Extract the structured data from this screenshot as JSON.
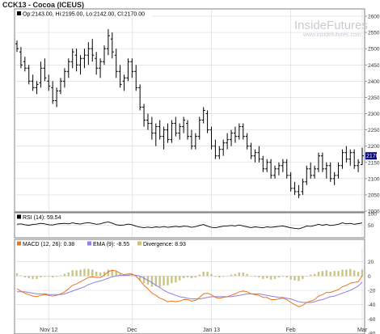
{
  "title": "CCK13 - Cocoa (ICEUS)",
  "ohlc_readout": {
    "open": "Op:2143.00",
    "high": "Hi:2195.00",
    "low": "Lo:2142.00",
    "close": "Cl:2170.00"
  },
  "watermark": {
    "brand": "InsideFutures",
    "url": "www.insidefutures.com"
  },
  "colors": {
    "price_bar": "#000000",
    "rsi": "#000000",
    "macd": "#e8761e",
    "ema": "#8f7fe6",
    "divergence": "#c9c482",
    "last_price_box": "#000080",
    "grid": "#d8d8d8"
  },
  "chart_data": [
    {
      "type": "ohlc",
      "panel": "price",
      "ylim": [
        2000,
        2620
      ],
      "y_ticks": [
        2000,
        2050,
        2100,
        2150,
        2200,
        2250,
        2300,
        2350,
        2400,
        2450,
        2500,
        2550,
        2600
      ],
      "last_price_label": "2170",
      "bars": [
        [
          2515,
          2525,
          2490,
          2500
        ],
        [
          2490,
          2505,
          2440,
          2450
        ],
        [
          2460,
          2475,
          2430,
          2440
        ],
        [
          2440,
          2450,
          2390,
          2400
        ],
        [
          2400,
          2420,
          2370,
          2380
        ],
        [
          2380,
          2400,
          2360,
          2390
        ],
        [
          2395,
          2460,
          2380,
          2440
        ],
        [
          2440,
          2470,
          2400,
          2410
        ],
        [
          2400,
          2420,
          2370,
          2385
        ],
        [
          2380,
          2400,
          2330,
          2340
        ],
        [
          2340,
          2380,
          2320,
          2370
        ],
        [
          2370,
          2410,
          2360,
          2400
        ],
        [
          2400,
          2440,
          2380,
          2430
        ],
        [
          2430,
          2470,
          2410,
          2460
        ],
        [
          2460,
          2500,
          2440,
          2490
        ],
        [
          2480,
          2500,
          2430,
          2450
        ],
        [
          2450,
          2480,
          2420,
          2470
        ],
        [
          2470,
          2500,
          2440,
          2480
        ],
        [
          2480,
          2520,
          2450,
          2500
        ],
        [
          2500,
          2530,
          2460,
          2480
        ],
        [
          2470,
          2490,
          2420,
          2440
        ],
        [
          2440,
          2470,
          2410,
          2460
        ],
        [
          2460,
          2510,
          2450,
          2500
        ],
        [
          2500,
          2560,
          2480,
          2540
        ],
        [
          2530,
          2550,
          2470,
          2490
        ],
        [
          2480,
          2500,
          2410,
          2430
        ],
        [
          2430,
          2450,
          2380,
          2390
        ],
        [
          2400,
          2420,
          2370,
          2410
        ],
        [
          2410,
          2470,
          2400,
          2460
        ],
        [
          2460,
          2470,
          2410,
          2430
        ],
        [
          2430,
          2450,
          2370,
          2380
        ],
        [
          2380,
          2390,
          2310,
          2320
        ],
        [
          2320,
          2330,
          2260,
          2280
        ],
        [
          2280,
          2300,
          2250,
          2270
        ],
        [
          2270,
          2290,
          2220,
          2240
        ],
        [
          2240,
          2270,
          2200,
          2260
        ],
        [
          2260,
          2280,
          2220,
          2230
        ],
        [
          2230,
          2260,
          2190,
          2250
        ],
        [
          2250,
          2270,
          2210,
          2220
        ],
        [
          2220,
          2280,
          2210,
          2270
        ],
        [
          2270,
          2290,
          2230,
          2240
        ],
        [
          2240,
          2270,
          2220,
          2260
        ],
        [
          2260,
          2290,
          2240,
          2280
        ],
        [
          2270,
          2280,
          2220,
          2230
        ],
        [
          2230,
          2250,
          2190,
          2200
        ],
        [
          2200,
          2240,
          2190,
          2230
        ],
        [
          2230,
          2290,
          2220,
          2280
        ],
        [
          2280,
          2320,
          2270,
          2310
        ],
        [
          2300,
          2310,
          2240,
          2250
        ],
        [
          2250,
          2260,
          2190,
          2200
        ],
        [
          2200,
          2220,
          2160,
          2170
        ],
        [
          2170,
          2200,
          2160,
          2190
        ],
        [
          2190,
          2220,
          2170,
          2210
        ],
        [
          2210,
          2240,
          2190,
          2220
        ],
        [
          2220,
          2250,
          2200,
          2240
        ],
        [
          2240,
          2260,
          2210,
          2230
        ],
        [
          2230,
          2270,
          2220,
          2260
        ],
        [
          2260,
          2270,
          2220,
          2230
        ],
        [
          2230,
          2240,
          2190,
          2200
        ],
        [
          2200,
          2210,
          2160,
          2170
        ],
        [
          2170,
          2190,
          2150,
          2180
        ],
        [
          2180,
          2200,
          2150,
          2160
        ],
        [
          2160,
          2170,
          2120,
          2130
        ],
        [
          2130,
          2160,
          2120,
          2150
        ],
        [
          2150,
          2160,
          2100,
          2110
        ],
        [
          2110,
          2140,
          2100,
          2130
        ],
        [
          2130,
          2150,
          2110,
          2140
        ],
        [
          2140,
          2160,
          2120,
          2150
        ],
        [
          2150,
          2160,
          2100,
          2110
        ],
        [
          2110,
          2120,
          2060,
          2070
        ],
        [
          2070,
          2090,
          2050,
          2060
        ],
        [
          2060,
          2080,
          2040,
          2050
        ],
        [
          2060,
          2100,
          2050,
          2090
        ],
        [
          2090,
          2140,
          2080,
          2130
        ],
        [
          2130,
          2150,
          2100,
          2110
        ],
        [
          2110,
          2140,
          2100,
          2130
        ],
        [
          2130,
          2180,
          2120,
          2170
        ],
        [
          2170,
          2180,
          2120,
          2130
        ],
        [
          2130,
          2150,
          2100,
          2140
        ],
        [
          2140,
          2150,
          2090,
          2100
        ],
        [
          2100,
          2120,
          2080,
          2110
        ],
        [
          2110,
          2150,
          2100,
          2140
        ],
        [
          2140,
          2190,
          2130,
          2180
        ],
        [
          2180,
          2200,
          2150,
          2160
        ],
        [
          2160,
          2190,
          2140,
          2180
        ],
        [
          2180,
          2190,
          2130,
          2140
        ],
        [
          2140,
          2160,
          2120,
          2150
        ],
        [
          2143,
          2195,
          2142,
          2170
        ]
      ]
    },
    {
      "type": "line",
      "panel": "rsi",
      "label": "RSI (14): 59.54",
      "ylim": [
        0,
        100
      ],
      "y_ticks": [
        50,
        100
      ],
      "values": [
        54,
        56,
        52,
        50,
        53,
        55,
        58,
        56,
        52,
        51,
        55,
        57,
        58,
        56,
        60,
        57,
        55,
        59,
        61,
        58,
        54,
        56,
        61,
        64,
        59,
        52,
        50,
        51,
        55,
        52,
        46,
        42,
        40,
        42,
        40,
        43,
        41,
        44,
        41,
        43,
        45,
        43,
        46,
        45,
        41,
        44,
        49,
        53,
        46,
        41,
        39,
        43,
        46,
        47,
        49,
        47,
        51,
        47,
        43,
        40,
        43,
        41,
        39,
        43,
        41,
        43,
        45,
        47,
        43,
        39,
        37,
        35,
        40,
        47,
        45,
        49,
        54,
        50,
        53,
        49,
        51,
        54,
        60,
        56,
        58,
        54,
        57,
        59.54
      ]
    },
    {
      "type": "macd",
      "panel": "macd",
      "legend": {
        "macd": "MACD (12, 26): 0.38",
        "ema": "EMA (9): -8.55",
        "divergence": "Divergence: 8.93"
      },
      "ylim": [
        -80,
        40
      ],
      "y_ticks": [
        -80,
        -60,
        -40,
        -20,
        0,
        20
      ],
      "macd": [
        -18,
        -21,
        -24,
        -26,
        -28,
        -29,
        -27,
        -26,
        -27,
        -28,
        -27,
        -25,
        -22,
        -18,
        -13,
        -11,
        -8,
        -5,
        -2,
        -1,
        -2,
        -2,
        1,
        6,
        8,
        7,
        4,
        2,
        3,
        3,
        0,
        -6,
        -13,
        -18,
        -24,
        -27,
        -31,
        -33,
        -36,
        -35,
        -36,
        -35,
        -33,
        -33,
        -35,
        -34,
        -30,
        -25,
        -24,
        -26,
        -30,
        -31,
        -30,
        -29,
        -27,
        -25,
        -22,
        -21,
        -22,
        -25,
        -26,
        -27,
        -30,
        -30,
        -33,
        -33,
        -32,
        -31,
        -33,
        -37,
        -40,
        -43,
        -41,
        -37,
        -35,
        -33,
        -28,
        -26,
        -23,
        -23,
        -21,
        -19,
        -15,
        -13,
        -10,
        -9,
        -8,
        0.38
      ],
      "ema": [
        -22,
        -22,
        -22,
        -23,
        -24,
        -25,
        -25,
        -25,
        -26,
        -26,
        -26,
        -26,
        -25,
        -23,
        -21,
        -19,
        -17,
        -15,
        -12,
        -10,
        -8,
        -7,
        -5,
        -3,
        -1,
        0,
        1,
        1,
        1,
        2,
        1,
        0,
        -3,
        -6,
        -9,
        -13,
        -16,
        -20,
        -23,
        -25,
        -27,
        -29,
        -30,
        -31,
        -32,
        -32,
        -32,
        -31,
        -30,
        -29,
        -29,
        -29,
        -29,
        -29,
        -29,
        -28,
        -27,
        -26,
        -25,
        -25,
        -25,
        -25,
        -26,
        -27,
        -28,
        -29,
        -30,
        -30,
        -31,
        -32,
        -34,
        -36,
        -37,
        -37,
        -37,
        -36,
        -34,
        -33,
        -31,
        -29,
        -28,
        -26,
        -24,
        -22,
        -20,
        -17,
        -14,
        -8.55
      ]
    }
  ],
  "x_axis": {
    "labels": [
      {
        "text": "Nov 12",
        "index": 8
      },
      {
        "text": "Dec",
        "index": 29
      },
      {
        "text": "Jan 13",
        "index": 49
      },
      {
        "text": "Feb",
        "index": 69
      },
      {
        "text": "Mar",
        "index": 87
      }
    ]
  }
}
